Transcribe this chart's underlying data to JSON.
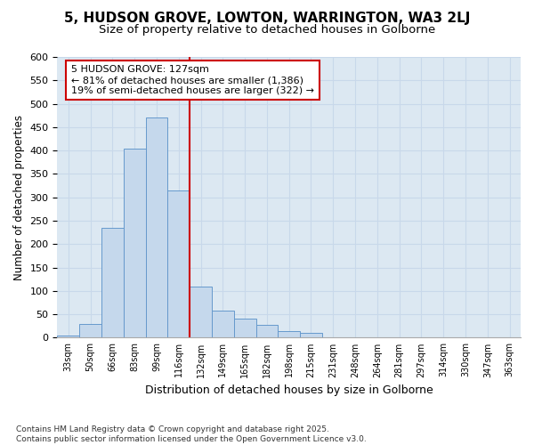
{
  "title_line1": "5, HUDSON GROVE, LOWTON, WARRINGTON, WA3 2LJ",
  "title_line2": "Size of property relative to detached houses in Golborne",
  "xlabel": "Distribution of detached houses by size in Golborne",
  "ylabel": "Number of detached properties",
  "bin_labels": [
    "33sqm",
    "50sqm",
    "66sqm",
    "83sqm",
    "99sqm",
    "116sqm",
    "132sqm",
    "149sqm",
    "165sqm",
    "182sqm",
    "198sqm",
    "215sqm",
    "231sqm",
    "248sqm",
    "264sqm",
    "281sqm",
    "297sqm",
    "314sqm",
    "330sqm",
    "347sqm",
    "363sqm"
  ],
  "bar_values": [
    5,
    30,
    235,
    405,
    470,
    315,
    110,
    57,
    40,
    27,
    15,
    10,
    0,
    0,
    0,
    0,
    0,
    0,
    0,
    0,
    0
  ],
  "bar_color": "#c5d8ec",
  "bar_edge_color": "#6699cc",
  "property_label": "5 HUDSON GROVE: 127sqm",
  "pct_smaller": "81% of detached houses are smaller (1,386)",
  "pct_larger": "19% of semi-detached houses are larger (322)",
  "vline_color": "#cc0000",
  "annotation_box_edge_color": "#cc0000",
  "grid_color": "#c8d8ea",
  "background_color": "#dce8f2",
  "footer_text": "Contains HM Land Registry data © Crown copyright and database right 2025.\nContains public sector information licensed under the Open Government Licence v3.0.",
  "ylim": [
    0,
    600
  ],
  "yticks": [
    0,
    50,
    100,
    150,
    200,
    250,
    300,
    350,
    400,
    450,
    500,
    550,
    600
  ],
  "vline_bin_index": 6,
  "title1_fontsize": 11,
  "title2_fontsize": 9.5
}
